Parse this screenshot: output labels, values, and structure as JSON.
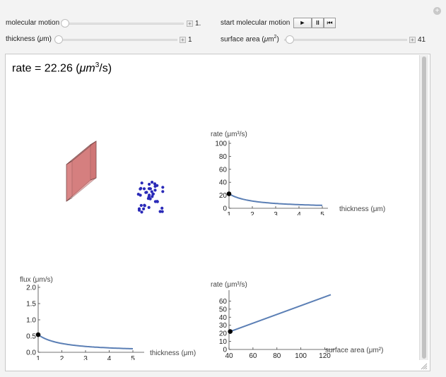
{
  "controls": {
    "molecular_motion": {
      "label": "molecular motion",
      "value": "1."
    },
    "thickness": {
      "label": "thickness (",
      "unit_mu": "μ",
      "label_end": "m)",
      "value": "1"
    },
    "start_molecular_motion": {
      "label": "start molecular motion"
    },
    "surface_area": {
      "label": "surface area (",
      "unit_mu": "μ",
      "label_mid": "m",
      "sup": "2",
      "label_end": ")",
      "value": "41"
    },
    "buttons": {
      "play": "►",
      "pause": "II",
      "reset": "⏮"
    }
  },
  "readout": {
    "prefix": "rate = 22.26 (",
    "mu": "μ",
    "m": "m",
    "sup": "3",
    "suffix": "/s)"
  },
  "icons": {
    "corner": "plus-icon"
  },
  "colors": {
    "curve": "#5b7fb5",
    "slab": "#e07a7a",
    "molecules": "#2a2ab8"
  },
  "chart_data": [
    {
      "type": "line",
      "title": "",
      "ylabel": "rate (μm³/s)",
      "xlabel": "thickness (μm)",
      "xlim": [
        1,
        5
      ],
      "ylim": [
        0,
        100
      ],
      "xticks": [
        1,
        2,
        3,
        4,
        5
      ],
      "yticks": [
        0,
        20,
        40,
        60,
        80,
        100
      ],
      "x": [
        1,
        1.5,
        2,
        2.5,
        3,
        3.5,
        4,
        4.5,
        5
      ],
      "y": [
        22.26,
        14.84,
        11.13,
        8.9,
        7.42,
        6.36,
        5.57,
        4.95,
        4.45
      ],
      "marker": {
        "x": 1,
        "y": 22.26
      }
    },
    {
      "type": "line",
      "title": "",
      "ylabel": "flux (μm/s)",
      "xlabel": "thickness (μm)",
      "xlim": [
        1,
        5
      ],
      "ylim": [
        0,
        2.0
      ],
      "xticks": [
        1,
        2,
        3,
        4,
        5
      ],
      "yticks": [
        "0.0",
        "0.5",
        "1.0",
        "1.5",
        "2.0"
      ],
      "x": [
        1,
        1.5,
        2,
        2.5,
        3,
        3.5,
        4,
        4.5,
        5
      ],
      "y": [
        0.543,
        0.362,
        0.272,
        0.217,
        0.181,
        0.155,
        0.136,
        0.121,
        0.109
      ],
      "marker": {
        "x": 1,
        "y": 0.543
      }
    },
    {
      "type": "line",
      "title": "",
      "ylabel": "rate (μm³/s)",
      "xlabel": "surface area (μm²)",
      "xlim": [
        40,
        125
      ],
      "ylim": [
        0,
        70
      ],
      "xticks": [
        40,
        60,
        80,
        100,
        120
      ],
      "yticks": [
        0,
        10,
        20,
        30,
        40,
        50,
        60
      ],
      "x": [
        41,
        125
      ],
      "y": [
        22.26,
        67.86
      ],
      "marker": {
        "x": 41,
        "y": 22.26
      }
    }
  ]
}
